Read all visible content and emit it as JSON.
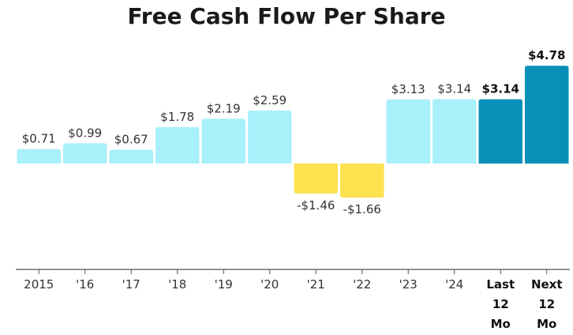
{
  "chart_data": {
    "type": "bar",
    "title": "Free Cash Flow Per Share",
    "categories": [
      "2015",
      "'16",
      "'17",
      "'18",
      "'19",
      "'20",
      "'21",
      "'22",
      "'23",
      "'24",
      "Last 12 Mo",
      "Next 12 Mo"
    ],
    "category_lines": [
      [
        "2015"
      ],
      [
        "'16"
      ],
      [
        "'17"
      ],
      [
        "'18"
      ],
      [
        "'19"
      ],
      [
        "'20"
      ],
      [
        "'21"
      ],
      [
        "'22"
      ],
      [
        "'23"
      ],
      [
        "'24"
      ],
      [
        "Last",
        "12",
        "Mo"
      ],
      [
        "Next",
        "12",
        "Mo"
      ]
    ],
    "values": [
      0.71,
      0.99,
      0.67,
      1.78,
      2.19,
      2.59,
      -1.46,
      -1.66,
      3.13,
      3.14,
      3.14,
      4.78
    ],
    "value_labels": [
      "$0.71",
      "$0.99",
      "$0.67",
      "$1.78",
      "$2.19",
      "$2.59",
      "-$1.46",
      "-$1.66",
      "$3.13",
      "$3.14",
      "$3.14",
      "$4.78"
    ],
    "highlighted": [
      false,
      false,
      false,
      false,
      false,
      false,
      false,
      false,
      false,
      false,
      true,
      true
    ],
    "colors": {
      "positive": "#a8f0fa",
      "negative": "#fde14f",
      "highlight": "#0a90b8",
      "axis": "#555555"
    },
    "xlabel": "",
    "ylabel": "",
    "grid": false,
    "legend": "none"
  }
}
